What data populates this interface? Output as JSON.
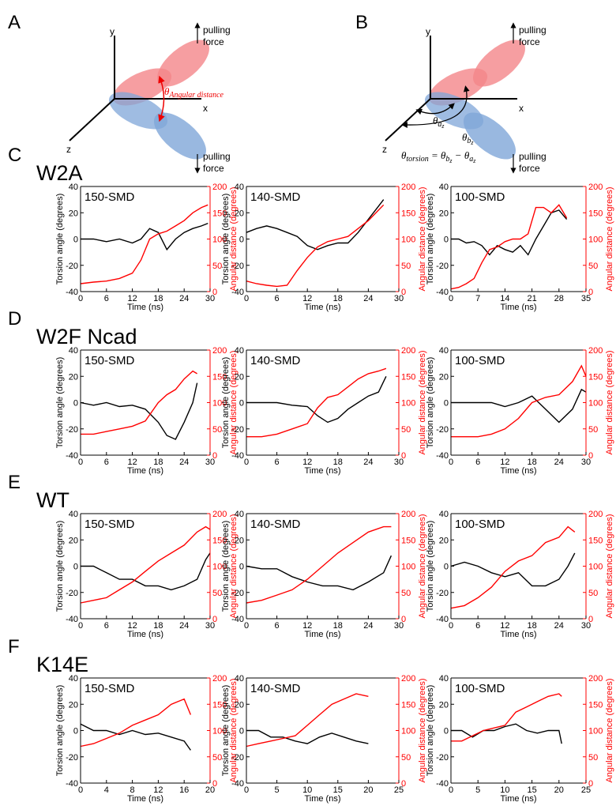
{
  "labels": {
    "A": "A",
    "B": "B"
  },
  "diagram_a": {
    "y": "y",
    "x": "x",
    "z": "z",
    "force_top": [
      "pulling",
      "force"
    ],
    "force_bottom": [
      "pulling",
      "force"
    ],
    "theta": "θ",
    "theta_sub": "Angular distance"
  },
  "diagram_b": {
    "y": "y",
    "x": "x",
    "z": "z",
    "force_top": [
      "pulling",
      "force"
    ],
    "force_bottom": [
      "pulling",
      "force"
    ],
    "theta_a": [
      "θ",
      "a",
      "z"
    ],
    "theta_b": [
      "θ",
      "b",
      "z"
    ],
    "equation": [
      "θ",
      "torsion",
      " = ",
      "θ",
      "b",
      "z",
      " − ",
      "θ",
      "a",
      "z"
    ]
  },
  "rows": [
    {
      "letter": "C",
      "name": "W2A"
    },
    {
      "letter": "D",
      "name": "W2F Ncad"
    },
    {
      "letter": "E",
      "name": "WT"
    },
    {
      "letter": "F",
      "name": "K14E"
    }
  ],
  "chart_data": [
    {
      "type": "line",
      "title": "150-SMD",
      "xlabel": "Time (ns)",
      "ylabel": "Torsion angle (degrees)",
      "y2label": "Angular distance (degrees)",
      "xlim": [
        0,
        30
      ],
      "xticks": [
        0,
        6,
        12,
        18,
        24,
        30
      ],
      "ylim": [
        -40,
        40
      ],
      "yticks": [
        -40,
        -20,
        0,
        20,
        40
      ],
      "y2lim": [
        0,
        200
      ],
      "y2ticks": [
        0,
        50,
        100,
        150,
        200
      ],
      "x": [
        0,
        3,
        6,
        9,
        12,
        14,
        16,
        18,
        20,
        22,
        24,
        26,
        28,
        29.5
      ],
      "series": [
        {
          "color": "#000000",
          "values": [
            0,
            0,
            -2,
            0,
            -3,
            0,
            8,
            5,
            -8,
            0,
            5,
            8,
            10,
            12
          ]
        },
        {
          "color": "#ff0000",
          "axis": "y2",
          "values": [
            15,
            18,
            20,
            25,
            35,
            60,
            100,
            110,
            115,
            125,
            135,
            150,
            160,
            165
          ]
        }
      ]
    },
    {
      "type": "line",
      "title": "140-SMD",
      "xlabel": "Time (ns)",
      "ylabel": "Torsion angle (degrees)",
      "y2label": "Angular distance (degrees)",
      "xlim": [
        0,
        30
      ],
      "xticks": [
        0,
        6,
        12,
        18,
        24,
        30
      ],
      "ylim": [
        -40,
        40
      ],
      "yticks": [
        -40,
        -20,
        0,
        20,
        40
      ],
      "y2lim": [
        0,
        200
      ],
      "y2ticks": [
        0,
        50,
        100,
        150,
        200
      ],
      "x": [
        0,
        2,
        4,
        6,
        8,
        10,
        12,
        14,
        16,
        18,
        20,
        22,
        24,
        26,
        27
      ],
      "series": [
        {
          "color": "#000000",
          "values": [
            5,
            8,
            10,
            8,
            5,
            2,
            -5,
            -8,
            -5,
            -3,
            -3,
            5,
            15,
            25,
            30
          ]
        },
        {
          "color": "#ff0000",
          "axis": "y2",
          "values": [
            20,
            15,
            12,
            10,
            12,
            40,
            65,
            85,
            95,
            100,
            105,
            120,
            135,
            155,
            165
          ]
        }
      ]
    },
    {
      "type": "line",
      "title": "100-SMD",
      "xlabel": "Time (ns)",
      "ylabel": "Torsion angle (degrees)",
      "y2label": "Angular distance (degrees)",
      "xlim": [
        0,
        35
      ],
      "xticks": [
        0,
        7,
        14,
        21,
        28,
        35
      ],
      "ylim": [
        -40,
        40
      ],
      "yticks": [
        -40,
        -20,
        0,
        20,
        40
      ],
      "y2lim": [
        0,
        200
      ],
      "y2ticks": [
        0,
        50,
        100,
        150,
        200
      ],
      "x": [
        0,
        2,
        4,
        6,
        8,
        10,
        12,
        14,
        16,
        18,
        20,
        22,
        24,
        26,
        28,
        30
      ],
      "series": [
        {
          "color": "#000000",
          "values": [
            0,
            0,
            -3,
            -2,
            -5,
            -12,
            -5,
            -8,
            -10,
            -5,
            -12,
            0,
            10,
            20,
            22,
            15
          ]
        },
        {
          "color": "#ff0000",
          "axis": "y2",
          "values": [
            5,
            8,
            15,
            25,
            55,
            80,
            85,
            95,
            100,
            100,
            110,
            160,
            160,
            150,
            165,
            140
          ]
        }
      ]
    },
    {
      "type": "line",
      "title": "150-SMD",
      "xlabel": "Time (ns)",
      "ylabel": "Torsion angle (degrees)",
      "y2label": "Angular distance (degrees)",
      "xlim": [
        0,
        30
      ],
      "xticks": [
        0,
        6,
        12,
        18,
        24,
        30
      ],
      "ylim": [
        -40,
        40
      ],
      "yticks": [
        -40,
        -20,
        0,
        20,
        40
      ],
      "y2lim": [
        0,
        200
      ],
      "y2ticks": [
        0,
        50,
        100,
        150,
        200
      ],
      "x": [
        0,
        3,
        6,
        9,
        12,
        15,
        18,
        20,
        22,
        24,
        26,
        27
      ],
      "series": [
        {
          "color": "#000000",
          "values": [
            0,
            -2,
            0,
            -3,
            -2,
            -5,
            -15,
            -25,
            -28,
            -15,
            0,
            15
          ]
        },
        {
          "color": "#ff0000",
          "axis": "y2",
          "values": [
            40,
            40,
            45,
            50,
            55,
            65,
            100,
            115,
            125,
            145,
            160,
            155
          ]
        }
      ]
    },
    {
      "type": "line",
      "title": "140-SMD",
      "xlabel": "Time (ns)",
      "ylabel": "Torsion angle (degrees)",
      "y2label": "Angular distance (degrees)",
      "xlim": [
        0,
        30
      ],
      "xticks": [
        0,
        6,
        12,
        18,
        24,
        30
      ],
      "ylim": [
        -40,
        40
      ],
      "yticks": [
        -40,
        -20,
        0,
        20,
        40
      ],
      "y2lim": [
        0,
        200
      ],
      "y2ticks": [
        0,
        50,
        100,
        150,
        200
      ],
      "x": [
        0,
        3,
        6,
        9,
        12,
        14,
        16,
        18,
        20,
        22,
        24,
        26,
        27.5
      ],
      "series": [
        {
          "color": "#000000",
          "values": [
            0,
            0,
            0,
            -2,
            -3,
            -10,
            -15,
            -12,
            -5,
            0,
            5,
            8,
            20
          ]
        },
        {
          "color": "#ff0000",
          "axis": "y2",
          "values": [
            35,
            35,
            40,
            50,
            60,
            90,
            110,
            115,
            130,
            145,
            155,
            160,
            165
          ]
        }
      ]
    },
    {
      "type": "line",
      "title": "100-SMD",
      "xlabel": "Time (ns)",
      "ylabel": "Torsion angle (degrees)",
      "y2label": "Angular distance (degrees)",
      "xlim": [
        0,
        30
      ],
      "xticks": [
        0,
        6,
        12,
        18,
        24,
        30
      ],
      "ylim": [
        -40,
        40
      ],
      "yticks": [
        -40,
        -20,
        0,
        20,
        40
      ],
      "y2lim": [
        0,
        200
      ],
      "y2ticks": [
        0,
        50,
        100,
        150,
        200
      ],
      "x": [
        0,
        3,
        6,
        9,
        12,
        15,
        18,
        21,
        24,
        27,
        29,
        30
      ],
      "series": [
        {
          "color": "#000000",
          "values": [
            0,
            0,
            0,
            0,
            -3,
            0,
            5,
            -5,
            -15,
            -5,
            10,
            8
          ]
        },
        {
          "color": "#ff0000",
          "axis": "y2",
          "values": [
            35,
            35,
            35,
            40,
            50,
            70,
            100,
            110,
            115,
            140,
            170,
            150
          ]
        }
      ]
    },
    {
      "type": "line",
      "title": "150-SMD",
      "xlabel": "Time (ns)",
      "ylabel": "Torsion angle (degrees)",
      "y2label": "Angular distance (degrees)",
      "xlim": [
        0,
        30
      ],
      "xticks": [
        0,
        6,
        12,
        18,
        24,
        30
      ],
      "ylim": [
        -40,
        40
      ],
      "yticks": [
        -40,
        -20,
        0,
        20,
        40
      ],
      "y2lim": [
        0,
        200
      ],
      "y2ticks": [
        0,
        50,
        100,
        150,
        200
      ],
      "x": [
        0,
        3,
        6,
        9,
        12,
        15,
        18,
        21,
        24,
        27,
        29,
        30
      ],
      "series": [
        {
          "color": "#000000",
          "values": [
            0,
            0,
            -5,
            -10,
            -10,
            -15,
            -15,
            -18,
            -15,
            -10,
            5,
            10
          ]
        },
        {
          "color": "#ff0000",
          "axis": "y2",
          "values": [
            30,
            35,
            40,
            55,
            70,
            90,
            110,
            125,
            140,
            165,
            175,
            170
          ]
        }
      ]
    },
    {
      "type": "line",
      "title": "140-SMD",
      "xlabel": "Time (ns)",
      "ylabel": "Torsion angle (degrees)",
      "y2label": "Angular distance (degrees)",
      "xlim": [
        0,
        30
      ],
      "xticks": [
        0,
        6,
        12,
        18,
        24,
        30
      ],
      "ylim": [
        -40,
        40
      ],
      "yticks": [
        -40,
        -20,
        0,
        20,
        40
      ],
      "y2lim": [
        0,
        200
      ],
      "y2ticks": [
        0,
        50,
        100,
        150,
        200
      ],
      "x": [
        0,
        3,
        6,
        9,
        12,
        15,
        18,
        21,
        24,
        27,
        28.5
      ],
      "series": [
        {
          "color": "#000000",
          "values": [
            0,
            -2,
            -2,
            -8,
            -12,
            -15,
            -15,
            -18,
            -12,
            -5,
            8
          ]
        },
        {
          "color": "#ff0000",
          "axis": "y2",
          "values": [
            30,
            35,
            45,
            55,
            75,
            100,
            125,
            145,
            165,
            175,
            175
          ]
        }
      ]
    },
    {
      "type": "line",
      "title": "100-SMD",
      "xlabel": "Time (ns)",
      "ylabel": "Torsion angle (degrees)",
      "y2label": "Angular distance (degrees)",
      "xlim": [
        0,
        30
      ],
      "xticks": [
        0,
        6,
        12,
        18,
        24,
        30
      ],
      "ylim": [
        -40,
        40
      ],
      "yticks": [
        -40,
        -20,
        0,
        20,
        40
      ],
      "y2lim": [
        0,
        200
      ],
      "y2ticks": [
        0,
        50,
        100,
        150,
        200
      ],
      "x": [
        0,
        3,
        6,
        9,
        12,
        15,
        18,
        21,
        24,
        26,
        27.5
      ],
      "series": [
        {
          "color": "#000000",
          "values": [
            0,
            3,
            0,
            -5,
            -8,
            -5,
            -15,
            -15,
            -10,
            0,
            10
          ]
        },
        {
          "color": "#ff0000",
          "axis": "y2",
          "values": [
            20,
            25,
            40,
            60,
            90,
            110,
            120,
            145,
            155,
            175,
            165
          ]
        }
      ]
    },
    {
      "type": "line",
      "title": "150-SMD",
      "xlabel": "Time (ns)",
      "ylabel": "Torsion angle (degrees)",
      "y2label": "Angular distance (degrees)",
      "xlim": [
        0,
        20
      ],
      "xticks": [
        0,
        4,
        8,
        12,
        16,
        20
      ],
      "ylim": [
        -40,
        40
      ],
      "yticks": [
        -40,
        -20,
        0,
        20,
        40
      ],
      "y2lim": [
        0,
        200
      ],
      "y2ticks": [
        0,
        50,
        100,
        150,
        200
      ],
      "x": [
        0,
        2,
        4,
        6,
        8,
        10,
        12,
        14,
        16,
        17
      ],
      "series": [
        {
          "color": "#000000",
          "values": [
            5,
            0,
            0,
            -3,
            0,
            -3,
            -2,
            -5,
            -8,
            -15
          ]
        },
        {
          "color": "#ff0000",
          "axis": "y2",
          "values": [
            70,
            75,
            85,
            95,
            110,
            120,
            130,
            150,
            160,
            130
          ]
        }
      ]
    },
    {
      "type": "line",
      "title": "140-SMD",
      "xlabel": "Time (ns)",
      "ylabel": "Torsion angle (degrees)",
      "y2label": "Angular distance (degrees)",
      "xlim": [
        0,
        25
      ],
      "xticks": [
        0,
        5,
        10,
        15,
        20,
        25
      ],
      "ylim": [
        -40,
        40
      ],
      "yticks": [
        -40,
        -20,
        0,
        20,
        40
      ],
      "y2lim": [
        0,
        200
      ],
      "y2ticks": [
        0,
        50,
        100,
        150,
        200
      ],
      "x": [
        0,
        2,
        4,
        6,
        8,
        10,
        12,
        14,
        16,
        18,
        20
      ],
      "series": [
        {
          "color": "#000000",
          "values": [
            0,
            0,
            -5,
            -5,
            -8,
            -10,
            -5,
            -2,
            -5,
            -8,
            -10
          ]
        },
        {
          "color": "#ff0000",
          "axis": "y2",
          "values": [
            70,
            75,
            80,
            85,
            90,
            110,
            130,
            150,
            160,
            170,
            165
          ]
        }
      ]
    },
    {
      "type": "line",
      "title": "100-SMD",
      "xlabel": "Time (ns)",
      "ylabel": "Torsion angle (degrees)",
      "y2label": "Angular distance (degrees)",
      "xlim": [
        0,
        25
      ],
      "xticks": [
        0,
        5,
        10,
        15,
        20,
        25
      ],
      "ylim": [
        -40,
        40
      ],
      "yticks": [
        -40,
        -20,
        0,
        20,
        40
      ],
      "y2lim": [
        0,
        200
      ],
      "y2ticks": [
        0,
        50,
        100,
        150,
        200
      ],
      "x": [
        0,
        2,
        4,
        6,
        8,
        10,
        12,
        14,
        16,
        18,
        20,
        20.5
      ],
      "series": [
        {
          "color": "#000000",
          "values": [
            0,
            0,
            -5,
            0,
            0,
            3,
            5,
            0,
            -2,
            0,
            0,
            -10
          ]
        },
        {
          "color": "#ff0000",
          "axis": "y2",
          "values": [
            80,
            80,
            90,
            100,
            105,
            110,
            135,
            145,
            155,
            165,
            170,
            165
          ]
        }
      ]
    }
  ]
}
